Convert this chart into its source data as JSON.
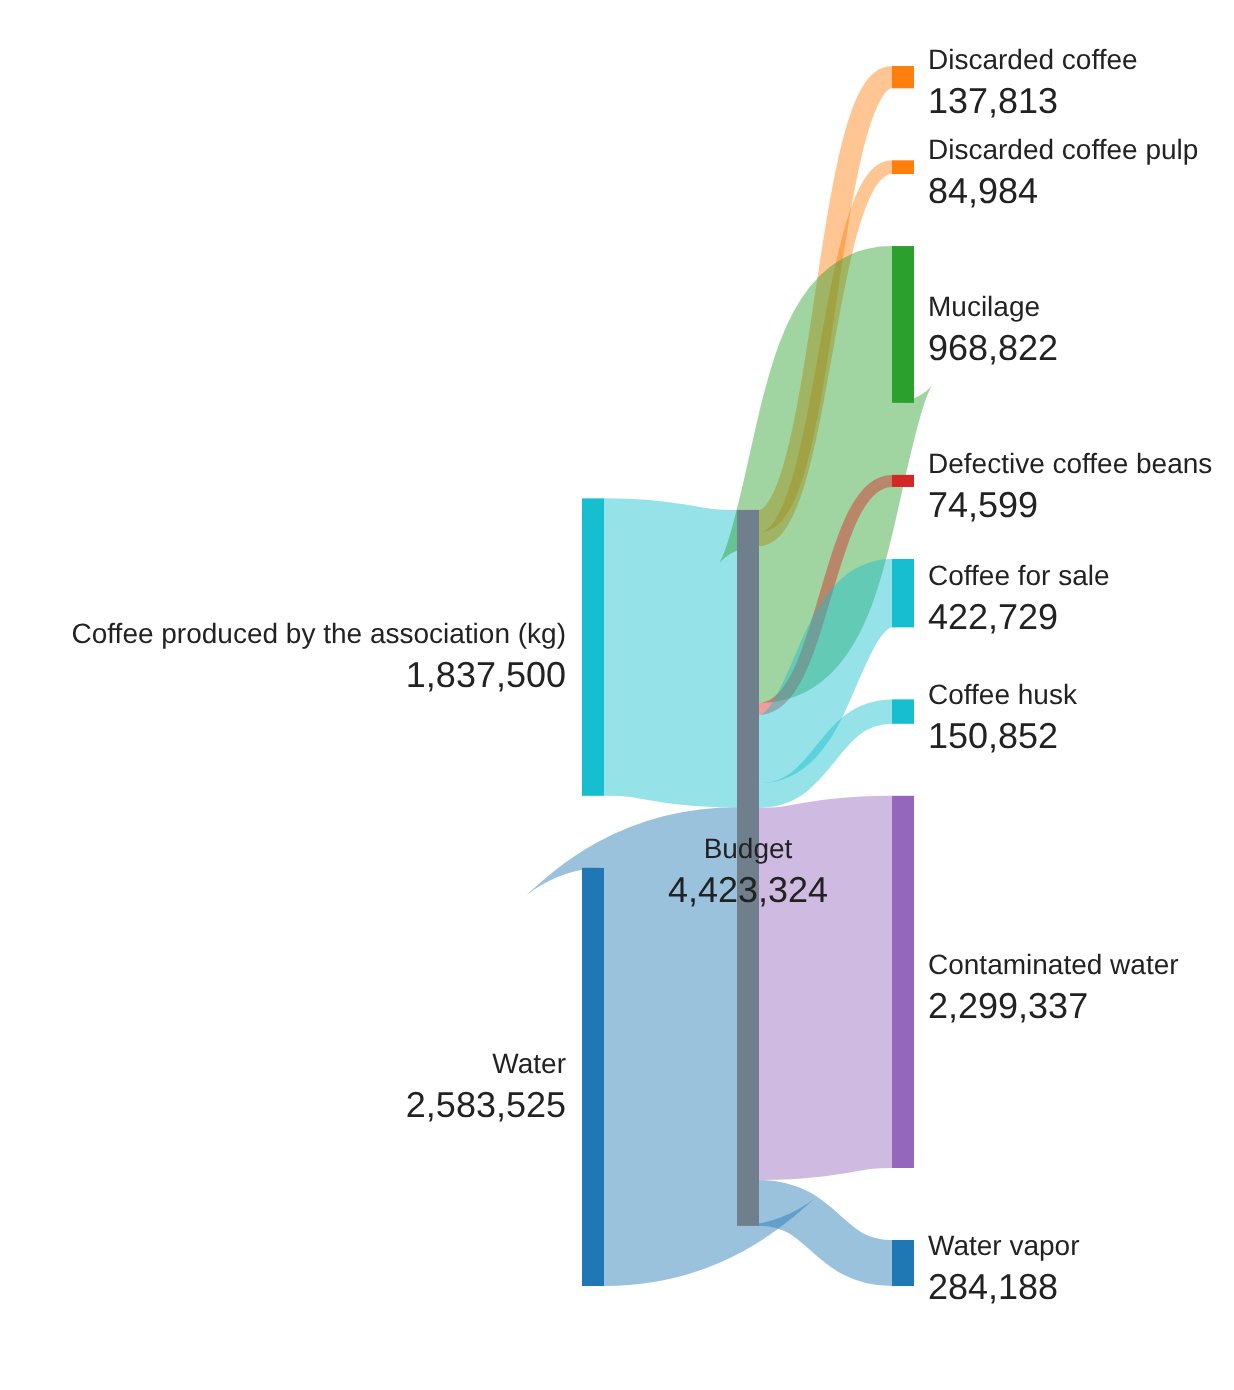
{
  "chart_data": {
    "type": "other",
    "categories": [
      "Coffee produced by the association (kg)",
      "Water",
      "Budget",
      "Discarded coffee",
      "Discarded coffee pulp",
      "Mucilage",
      "Defective coffee beans",
      "Coffee for sale",
      "Coffee husk",
      "Contaminated water",
      "Water vapor"
    ],
    "values": [
      1837500,
      2583525,
      4423324,
      137813,
      84984,
      968822,
      74599,
      422729,
      150852,
      2299337,
      284188
    ],
    "value_labels": [
      "1,837,500",
      "2,583,525",
      "4,423,324",
      "137,813",
      "84,984",
      "968,822",
      "74,599",
      "422,729",
      "150,852",
      "2,299,337",
      "284,188"
    ],
    "colors": [
      "#17becf",
      "#1f77b4",
      "#6f7f8c",
      "#ff7f0e",
      "#ff7f0e",
      "#2ca02c",
      "#d62728",
      "#17becf",
      "#17becf",
      "#9467bd",
      "#1f77b4"
    ]
  }
}
